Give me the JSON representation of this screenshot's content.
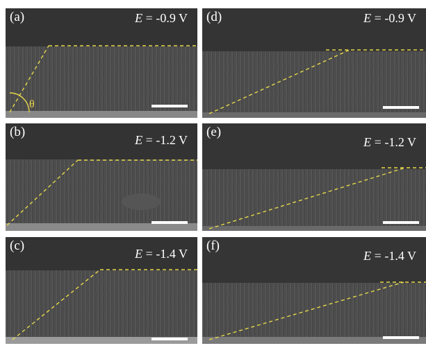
{
  "panels": [
    {
      "id": "a",
      "label": "(a)",
      "e_symbol": "E",
      "e_value": " = -0.9 V",
      "angle_symbol": "θ"
    },
    {
      "id": "b",
      "label": "(b)",
      "e_symbol": "E",
      "e_value": " = -1.2 V"
    },
    {
      "id": "c",
      "label": "(c)",
      "e_symbol": "E",
      "e_value": " = -1.4 V"
    },
    {
      "id": "d",
      "label": "(d)",
      "e_symbol": "E",
      "e_value": " = -0.9 V"
    },
    {
      "id": "e",
      "label": "(e)",
      "e_symbol": "E",
      "e_value": " = -1.2 V"
    },
    {
      "id": "f",
      "label": "(f)",
      "e_symbol": "E",
      "e_value": " = -1.4 V"
    }
  ],
  "colors": {
    "guide_line": "#e6d84a",
    "text": "#ffffff",
    "background": "#3a3a3a"
  }
}
